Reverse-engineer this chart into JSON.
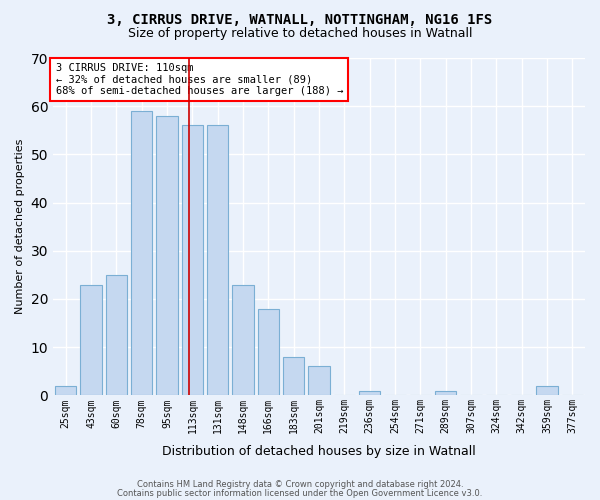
{
  "title_line1": "3, CIRRUS DRIVE, WATNALL, NOTTINGHAM, NG16 1FS",
  "title_line2": "Size of property relative to detached houses in Watnall",
  "xlabel": "Distribution of detached houses by size in Watnall",
  "ylabel": "Number of detached properties",
  "bar_labels": [
    "25sqm",
    "43sqm",
    "60sqm",
    "78sqm",
    "95sqm",
    "113sqm",
    "131sqm",
    "148sqm",
    "166sqm",
    "183sqm",
    "201sqm",
    "219sqm",
    "236sqm",
    "254sqm",
    "271sqm",
    "289sqm",
    "307sqm",
    "324sqm",
    "342sqm",
    "359sqm",
    "377sqm"
  ],
  "bar_values": [
    2,
    23,
    25,
    59,
    58,
    56,
    56,
    23,
    18,
    8,
    6,
    0,
    1,
    0,
    0,
    1,
    0,
    0,
    0,
    2,
    0
  ],
  "bar_color": "#c5d8f0",
  "bar_edgecolor": "#7bafd4",
  "ylim": [
    0,
    70
  ],
  "yticks": [
    0,
    10,
    20,
    30,
    40,
    50,
    60,
    70
  ],
  "annotation_line1": "3 CIRRUS DRIVE: 110sqm",
  "annotation_line2": "← 32% of detached houses are smaller (89)",
  "annotation_line3": "68% of semi-detached houses are larger (188) →",
  "vline_x": 4.85,
  "footer_line1": "Contains HM Land Registry data © Crown copyright and database right 2024.",
  "footer_line2": "Contains public sector information licensed under the Open Government Licence v3.0.",
  "bg_color": "#eaf1fb",
  "grid_color": "#ffffff",
  "vline_color": "#cc0000"
}
